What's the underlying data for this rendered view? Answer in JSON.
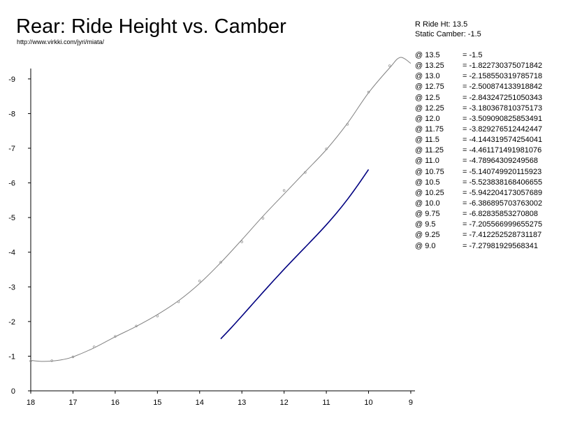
{
  "title": "Rear: Ride Height vs. Camber",
  "url_text": "http://www.virkki.com/jyri/miata/",
  "info": {
    "ride_height_line": "R Ride Ht: 13.5",
    "static_camber_line": "Static Camber: -1.5"
  },
  "table": [
    {
      "height": "@ 13.5",
      "value": "= -1.5"
    },
    {
      "height": "@ 13.25",
      "value": "= -1.822730375071842"
    },
    {
      "height": "@ 13.0",
      "value": "= -2.158550319785718"
    },
    {
      "height": "@ 12.75",
      "value": "= -2.500874133918842"
    },
    {
      "height": "@ 12.5",
      "value": "= -2.843247251050343"
    },
    {
      "height": "@ 12.25",
      "value": "= -3.180367810375173"
    },
    {
      "height": "@ 12.0",
      "value": "= -3.509090825853491"
    },
    {
      "height": "@ 11.75",
      "value": "= -3.829276512442447"
    },
    {
      "height": "@ 11.5",
      "value": "= -4.144319574254041"
    },
    {
      "height": "@ 11.25",
      "value": "= -4.461171491981076"
    },
    {
      "height": "@ 11.0",
      "value": "= -4.78964309249568"
    },
    {
      "height": "@ 10.75",
      "value": "= -5.140749920115923"
    },
    {
      "height": "@ 10.5",
      "value": "= -5.523838168406655"
    },
    {
      "height": "@ 10.25",
      "value": "= -5.942204173057689"
    },
    {
      "height": "@ 10.0",
      "value": "= -6.386895703763002"
    },
    {
      "height": "@ 9.75",
      "value": "= -6.82835853270808"
    },
    {
      "height": "@ 9.5",
      "value": "= -7.205566999655275"
    },
    {
      "height": "@ 9.25",
      "value": "= -7.412252528731187"
    },
    {
      "height": "@ 9.0",
      "value": "= -7.27981929568341"
    }
  ],
  "chart_data": {
    "type": "line",
    "title": "Rear: Ride Height vs. Camber",
    "xlabel": "",
    "ylabel": "",
    "xlim": [
      18,
      8.9
    ],
    "ylim": [
      0,
      -9.3
    ],
    "x_reversed": true,
    "y_reversed": true,
    "grid": false,
    "x_ticks": [
      18,
      17,
      16,
      15,
      14,
      13,
      12,
      11,
      10,
      9
    ],
    "y_ticks": [
      0,
      -1,
      -2,
      -3,
      -4,
      -5,
      -6,
      -7,
      -8,
      -9
    ],
    "colors": {
      "reference_curve": "#808080",
      "computed_curve": "#000080"
    },
    "series": [
      {
        "key": "reference",
        "style": "line-with-markers",
        "x": [
          18,
          17.5,
          17,
          16.5,
          16,
          15.5,
          15,
          14.5,
          14,
          13.5,
          13,
          12.5,
          12,
          11.5,
          11,
          10.5,
          10,
          9.5
        ],
        "y": [
          -0.86,
          -0.87,
          -0.98,
          -1.27,
          -1.57,
          -1.87,
          -2.16,
          -2.57,
          -3.17,
          -3.71,
          -4.3,
          -4.98,
          -5.78,
          -6.3,
          -6.98,
          -7.69,
          -8.62,
          -9.38
        ],
        "curve_x": [
          18,
          17.75,
          17.5,
          17.25,
          17,
          16.5,
          16,
          15.5,
          15,
          14.5,
          14,
          13.5,
          13,
          12.5,
          12,
          11.5,
          11,
          10.5,
          10,
          9.5,
          9.25,
          9.0
        ],
        "curve_y": [
          -0.88,
          -0.85,
          -0.86,
          -0.9,
          -0.98,
          -1.24,
          -1.56,
          -1.86,
          -2.2,
          -2.6,
          -3.1,
          -3.7,
          -4.36,
          -5.04,
          -5.68,
          -6.32,
          -6.96,
          -7.72,
          -8.6,
          -9.32,
          -9.62,
          -9.45
        ]
      },
      {
        "key": "computed",
        "style": "line",
        "x": [
          13.5,
          13.25,
          13.0,
          12.75,
          12.5,
          12.25,
          12.0,
          11.75,
          11.5,
          11.25,
          11.0,
          10.75,
          10.5,
          10.25,
          10.0
        ],
        "y": [
          -1.5,
          -1.822730375071842,
          -2.158550319785718,
          -2.500874133918842,
          -2.843247251050343,
          -3.180367810375173,
          -3.509090825853491,
          -3.829276512442447,
          -4.144319574254041,
          -4.461171491981076,
          -4.78964309249568,
          -5.140749920115923,
          -5.523838168406655,
          -5.942204173057689,
          -6.386895703763002
        ]
      }
    ]
  }
}
